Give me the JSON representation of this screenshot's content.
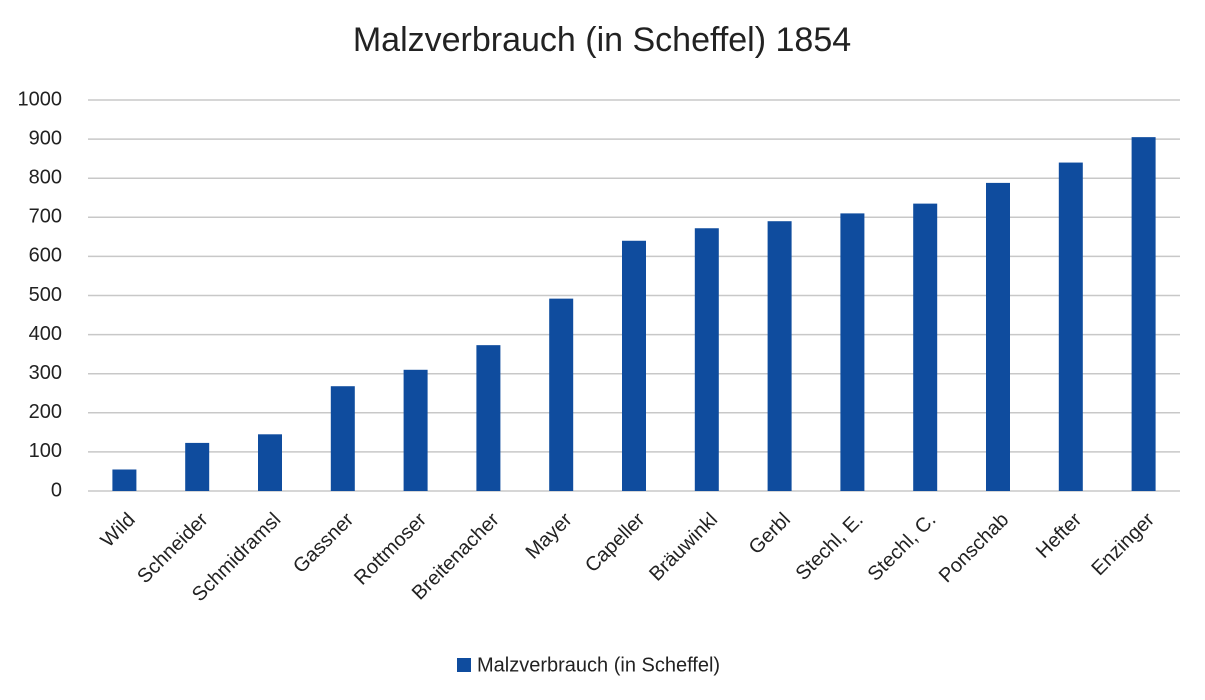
{
  "chart_data": {
    "type": "bar",
    "title": "Malzverbrauch (in Scheffel) 1854",
    "categories": [
      "Wild",
      "Schneider",
      "Schmidramsl",
      "Gassner",
      "Rottmoser",
      "Breitenacher",
      "Mayer",
      "Capeller",
      "Bräuwinkl",
      "Gerbl",
      "Stechl, E.",
      "Stechl, C.",
      "Ponschab",
      "Hefter",
      "Enzinger"
    ],
    "series": [
      {
        "name": "Malzverbrauch (in Scheffel)",
        "color": "#0f4c9e",
        "values": [
          55,
          123,
          145,
          268,
          310,
          373,
          492,
          640,
          672,
          690,
          710,
          735,
          788,
          840,
          905
        ]
      }
    ],
    "ylim": [
      0,
      1000
    ],
    "yticks": [
      0,
      100,
      200,
      300,
      400,
      500,
      600,
      700,
      800,
      900,
      1000
    ],
    "grid": true,
    "legend": "bottom"
  }
}
